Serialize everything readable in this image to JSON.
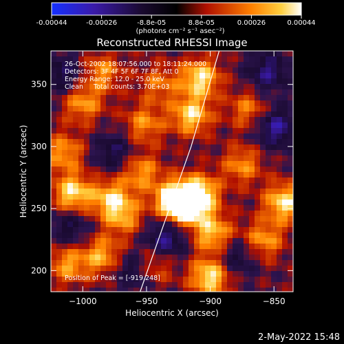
{
  "chart_data": {
    "type": "heatmap",
    "title": "Reconstructed RHESSI Image",
    "xlabel": "Heliocentric X (arcsec)",
    "ylabel": "Heliocentric Y (arcsec)",
    "xlim": [
      -1025,
      -835
    ],
    "ylim": [
      183,
      377
    ],
    "x_ticks": [
      -1000,
      -950,
      -900,
      -850
    ],
    "y_ticks": [
      200,
      250,
      300,
      350
    ],
    "colorbar": {
      "ticks": [
        "-0.00044",
        "-0.00026",
        "-8.8e-05",
        "8.8e-05",
        "0.00026",
        "0.00044"
      ],
      "unit_label": "(photons cm⁻² s⁻¹ asec⁻²)",
      "range": [
        -0.00044,
        0.00044
      ]
    },
    "info_lines": [
      "26-Oct-2002 18:07:56.000 to 18:11:24.000",
      "Detectors: 3F 4F 5F 6F 7F 8F, Att 0",
      "Energy Range: 12.0 - 25.0 keV",
      "Clean     Total counts: 3.70E+03"
    ],
    "peak_label": "Position of Peak = [-919,248]",
    "peak": [
      -919,
      248
    ],
    "limb_line": [
      [
        -955,
        183
      ],
      [
        -915,
        300
      ],
      [
        -893,
        377
      ]
    ],
    "hot_spots": [
      {
        "x": -919,
        "y": 252,
        "v": 1.0
      },
      {
        "x": -930,
        "y": 258,
        "v": 0.75
      },
      {
        "x": -1008,
        "y": 262,
        "v": 0.85
      },
      {
        "x": -978,
        "y": 258,
        "v": 0.7
      },
      {
        "x": -908,
        "y": 262,
        "v": 0.8
      },
      {
        "x": -915,
        "y": 325,
        "v": 0.8
      },
      {
        "x": -908,
        "y": 355,
        "v": 0.85
      },
      {
        "x": -1000,
        "y": 335,
        "v": 0.6
      },
      {
        "x": -952,
        "y": 318,
        "v": 0.55
      },
      {
        "x": -900,
        "y": 195,
        "v": 0.9
      },
      {
        "x": -898,
        "y": 230,
        "v": 0.75
      },
      {
        "x": -842,
        "y": 255,
        "v": 0.85
      },
      {
        "x": -858,
        "y": 225,
        "v": 0.6
      },
      {
        "x": -985,
        "y": 212,
        "v": 0.65
      },
      {
        "x": -1012,
        "y": 205,
        "v": 0.6
      },
      {
        "x": -968,
        "y": 243,
        "v": 0.55
      },
      {
        "x": -955,
        "y": 280,
        "v": 0.6
      },
      {
        "x": -875,
        "y": 285,
        "v": 0.55
      },
      {
        "x": -1015,
        "y": 295,
        "v": 0.6
      },
      {
        "x": -985,
        "y": 360,
        "v": 0.55
      },
      {
        "x": -945,
        "y": 205,
        "v": 0.5
      },
      {
        "x": -870,
        "y": 330,
        "v": 0.5
      },
      {
        "x": -940,
        "y": 350,
        "v": 0.45
      }
    ],
    "cold_spots": [
      {
        "x": -935,
        "y": 225,
        "v": -0.7
      },
      {
        "x": -848,
        "y": 315,
        "v": -0.7
      },
      {
        "x": -855,
        "y": 360,
        "v": -0.6
      },
      {
        "x": -1015,
        "y": 358,
        "v": -0.5
      },
      {
        "x": -975,
        "y": 295,
        "v": -0.5
      },
      {
        "x": -880,
        "y": 210,
        "v": -0.45
      },
      {
        "x": -960,
        "y": 200,
        "v": -0.5
      },
      {
        "x": -1010,
        "y": 235,
        "v": -0.45
      }
    ]
  },
  "timestamp": "2-May-2022 15:48"
}
